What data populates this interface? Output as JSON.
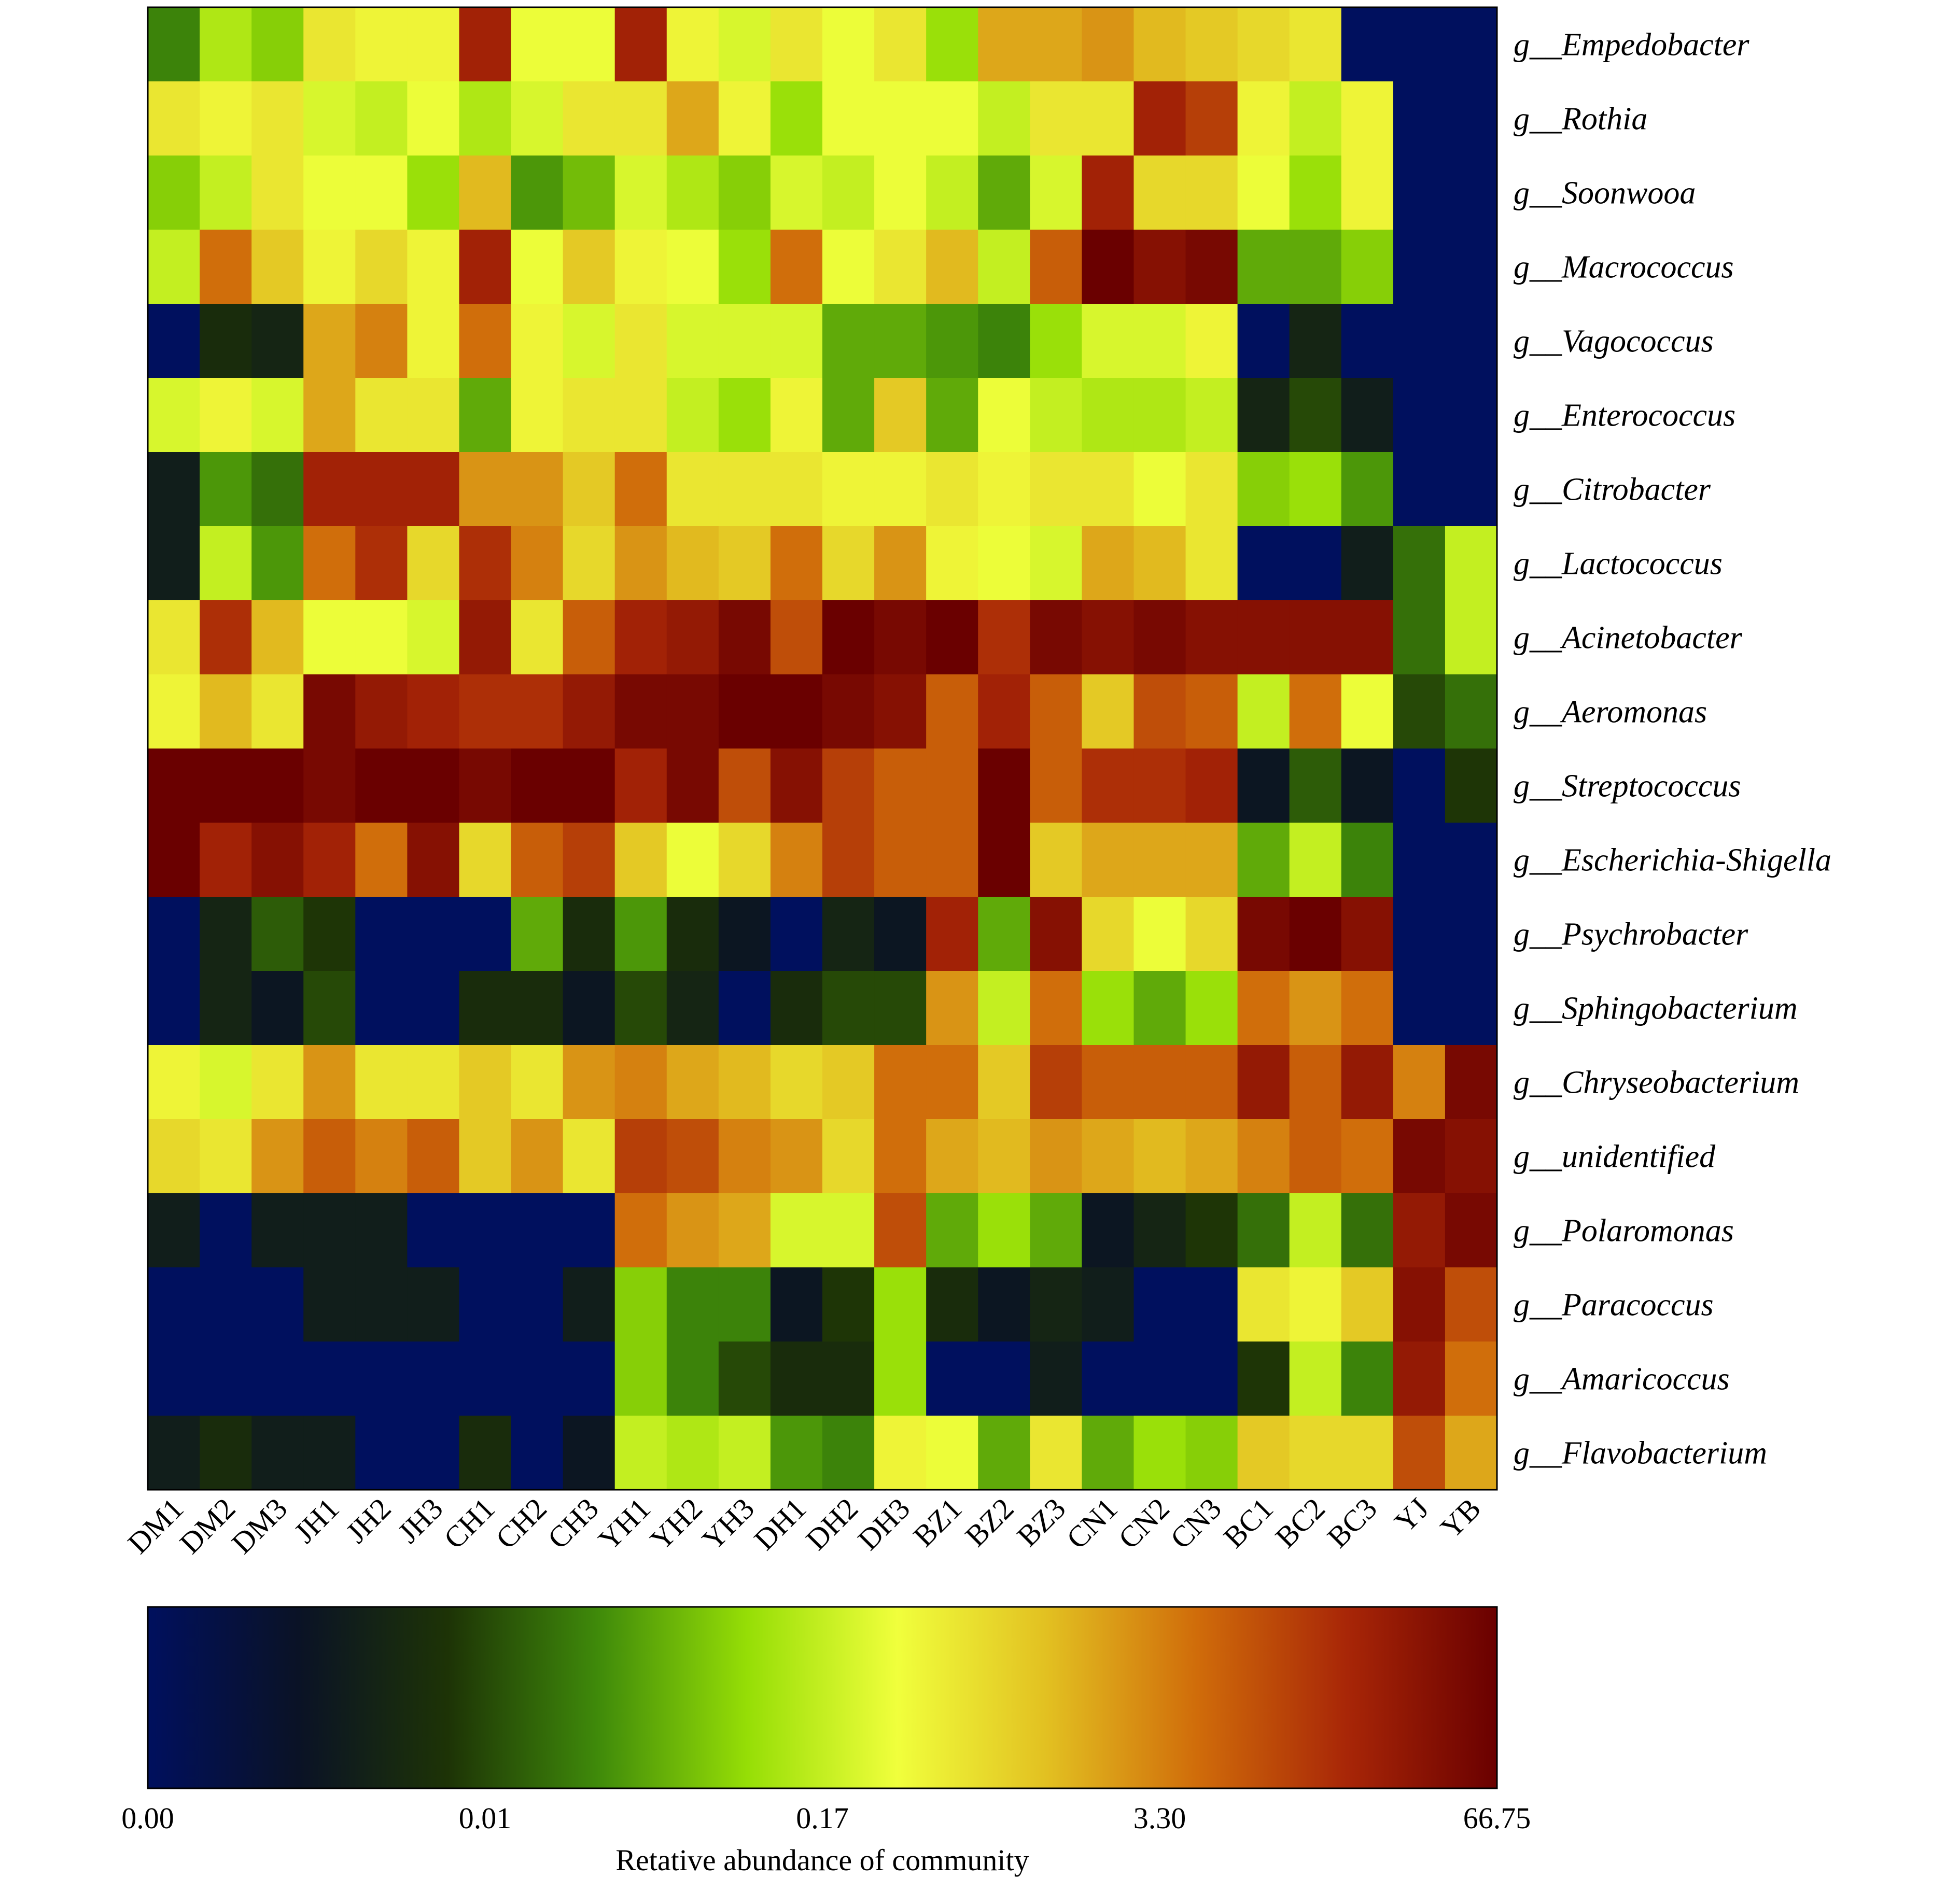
{
  "chart_data": {
    "type": "heatmap",
    "columns": [
      "DM1",
      "DM2",
      "DM3",
      "JH1",
      "JH2",
      "JH3",
      "CH1",
      "CH2",
      "CH3",
      "YH1",
      "YH2",
      "YH3",
      "DH1",
      "DH2",
      "DH3",
      "BZ1",
      "BZ2",
      "BZ3",
      "CN1",
      "CN2",
      "CN3",
      "BC1",
      "BC2",
      "BC3",
      "YJ",
      "YB"
    ],
    "rows": [
      "g__Empedobacter",
      "g__Rothia",
      "g__Soonwooa",
      "g__Macrococcus",
      "g__Vagococcus",
      "g__Enterococcus",
      "g__Citrobacter",
      "g__Lactococcus",
      "g__Acinetobacter",
      "g__Aeromonas",
      "g__Streptococcus",
      "g__Escherichia-Shigella",
      "g__Psychrobacter",
      "g__Sphingobacterium",
      "g__Chryseobacterium",
      "g__unidentified",
      "g__Polaromonas",
      "g__Paracoccus",
      "g__Amaricoccus",
      "g__Flavobacterium"
    ],
    "values_scale_note_position": "0 = 0.00, 1 = 0.01, 2 = 0.17, 3 = 3.30, 4 = 66.75",
    "values": [
      [
        1.3,
        1.9,
        1.7,
        2.4,
        2.3,
        2.3,
        3.6,
        2.2,
        2.2,
        3.6,
        2.3,
        2.1,
        2.4,
        2.2,
        2.4,
        1.8,
        2.8,
        2.8,
        2.9,
        2.7,
        2.6,
        2.5,
        2.4,
        0,
        0,
        0
      ],
      [
        2.4,
        2.3,
        2.4,
        2.1,
        2.0,
        2.2,
        1.9,
        2.1,
        2.4,
        2.4,
        2.8,
        2.3,
        1.8,
        2.2,
        2.2,
        2.2,
        2.0,
        2.4,
        2.4,
        3.6,
        3.4,
        2.3,
        2.0,
        2.3,
        0,
        0
      ],
      [
        1.7,
        2.0,
        2.4,
        2.2,
        2.2,
        1.8,
        2.7,
        1.4,
        1.6,
        2.1,
        1.9,
        1.7,
        2.1,
        2.0,
        2.2,
        2.0,
        1.5,
        2.1,
        3.6,
        2.5,
        2.5,
        2.2,
        1.8,
        2.3,
        0,
        0
      ],
      [
        2.0,
        3.1,
        2.6,
        2.3,
        2.5,
        2.3,
        3.6,
        2.2,
        2.6,
        2.3,
        2.2,
        1.8,
        3.1,
        2.2,
        2.4,
        2.7,
        2.0,
        3.2,
        4.0,
        3.8,
        3.9,
        1.5,
        1.5,
        1.7,
        0,
        0
      ],
      [
        0,
        0.8,
        0.7,
        2.8,
        3.0,
        2.3,
        3.1,
        2.3,
        2.1,
        2.4,
        2.1,
        2.1,
        2.1,
        1.5,
        1.5,
        1.4,
        1.3,
        1.8,
        2.1,
        2.1,
        2.3,
        0,
        0.7,
        0,
        0,
        0
      ],
      [
        2.1,
        2.3,
        2.1,
        2.8,
        2.4,
        2.4,
        1.5,
        2.3,
        2.4,
        2.4,
        2.0,
        1.8,
        2.3,
        1.5,
        2.6,
        1.5,
        2.2,
        2.0,
        1.9,
        1.9,
        2.0,
        0.7,
        1.0,
        0.6,
        0,
        0
      ],
      [
        0.6,
        1.4,
        1.2,
        3.6,
        3.6,
        3.6,
        2.9,
        2.9,
        2.6,
        3.1,
        2.4,
        2.4,
        2.4,
        2.3,
        2.3,
        2.4,
        2.3,
        2.4,
        2.4,
        2.2,
        2.4,
        1.7,
        1.8,
        1.4,
        0,
        0
      ],
      [
        0.6,
        2.0,
        1.4,
        3.1,
        3.5,
        2.5,
        3.5,
        3.0,
        2.5,
        2.9,
        2.7,
        2.6,
        3.1,
        2.5,
        2.9,
        2.3,
        2.2,
        2.1,
        2.8,
        2.7,
        2.4,
        0,
        0,
        0.6,
        1.2,
        2.0
      ],
      [
        2.4,
        3.5,
        2.7,
        2.2,
        2.2,
        2.1,
        3.7,
        2.4,
        3.2,
        3.6,
        3.7,
        3.9,
        3.3,
        4.0,
        3.9,
        4.0,
        3.5,
        3.9,
        3.8,
        3.9,
        3.8,
        3.8,
        3.8,
        3.8,
        1.2,
        2.0
      ],
      [
        2.3,
        2.7,
        2.4,
        3.9,
        3.7,
        3.6,
        3.5,
        3.5,
        3.7,
        3.9,
        3.9,
        4.0,
        4.0,
        3.9,
        3.8,
        3.2,
        3.6,
        3.2,
        2.6,
        3.3,
        3.2,
        2.0,
        3.1,
        2.2,
        1.0,
        1.2
      ],
      [
        4.0,
        4.0,
        4.0,
        3.9,
        4.0,
        4.0,
        3.9,
        4.0,
        4.0,
        3.6,
        3.9,
        3.3,
        3.8,
        3.4,
        3.2,
        3.2,
        4.0,
        3.2,
        3.5,
        3.5,
        3.6,
        0.5,
        1.1,
        0.5,
        0,
        0.9
      ],
      [
        4.0,
        3.6,
        3.8,
        3.6,
        3.1,
        3.8,
        2.5,
        3.2,
        3.4,
        2.6,
        2.2,
        2.5,
        3.0,
        3.4,
        3.2,
        3.2,
        4.0,
        2.6,
        2.8,
        2.8,
        2.8,
        1.5,
        2.0,
        1.3,
        0,
        0
      ],
      [
        0,
        0.7,
        1.1,
        0.9,
        0,
        0,
        0,
        1.5,
        0.8,
        1.4,
        0.8,
        0.5,
        0,
        0.7,
        0.5,
        3.6,
        1.5,
        3.8,
        2.5,
        2.2,
        2.5,
        3.9,
        4.0,
        3.8,
        0,
        0
      ],
      [
        0,
        0.7,
        0.5,
        1.0,
        0,
        0,
        0.8,
        0.8,
        0.5,
        1.0,
        0.7,
        0,
        0.8,
        1.0,
        1.0,
        2.9,
        2.0,
        3.1,
        1.8,
        1.5,
        1.8,
        3.1,
        2.9,
        3.1,
        0,
        0
      ],
      [
        2.3,
        2.1,
        2.4,
        2.9,
        2.4,
        2.4,
        2.6,
        2.4,
        2.9,
        3.0,
        2.8,
        2.7,
        2.5,
        2.6,
        3.1,
        3.1,
        2.6,
        3.4,
        3.2,
        3.2,
        3.2,
        3.7,
        3.2,
        3.7,
        3.0,
        3.9
      ],
      [
        2.5,
        2.4,
        2.9,
        3.2,
        3.0,
        3.2,
        2.6,
        2.9,
        2.4,
        3.4,
        3.3,
        3.0,
        2.9,
        2.5,
        3.1,
        2.8,
        2.7,
        2.9,
        2.8,
        2.7,
        2.8,
        3.0,
        3.2,
        3.1,
        3.9,
        3.8
      ],
      [
        0.6,
        0,
        0.6,
        0.6,
        0.6,
        0,
        0,
        0,
        0,
        3.1,
        2.9,
        2.8,
        2.1,
        2.1,
        3.3,
        1.5,
        1.8,
        1.5,
        0.5,
        0.7,
        0.9,
        1.2,
        2.0,
        1.2,
        3.7,
        3.9
      ],
      [
        0,
        0,
        0,
        0.6,
        0.6,
        0.6,
        0,
        0,
        0.6,
        1.7,
        1.3,
        1.3,
        0.5,
        0.9,
        1.8,
        0.8,
        0.5,
        0.7,
        0.6,
        0,
        0,
        2.4,
        2.3,
        2.6,
        3.8,
        3.3
      ],
      [
        0,
        0,
        0,
        0,
        0,
        0,
        0,
        0,
        0,
        1.7,
        1.3,
        1.0,
        0.8,
        0.8,
        1.8,
        0,
        0,
        0.6,
        0,
        0,
        0,
        0.9,
        2.0,
        1.3,
        3.7,
        3.1
      ],
      [
        0.6,
        0.8,
        0.6,
        0.6,
        0,
        0,
        0.8,
        0,
        0.5,
        2.0,
        1.9,
        2.0,
        1.4,
        1.3,
        2.3,
        2.2,
        1.5,
        2.4,
        1.5,
        1.8,
        1.7,
        2.6,
        2.5,
        2.5,
        3.3,
        2.8
      ]
    ],
    "colorbar": {
      "tick_labels": [
        "0.00",
        "0.01",
        "0.17",
        "3.30",
        "66.75"
      ],
      "title": "Retative abundance of community"
    },
    "colormap_stops": [
      "#00105e",
      "#0a1226",
      "#1d3306",
      "#3f8a0a",
      "#96de06",
      "#f0ff3c",
      "#e2c021",
      "#d06c0a",
      "#a82607",
      "#6a0000"
    ]
  }
}
